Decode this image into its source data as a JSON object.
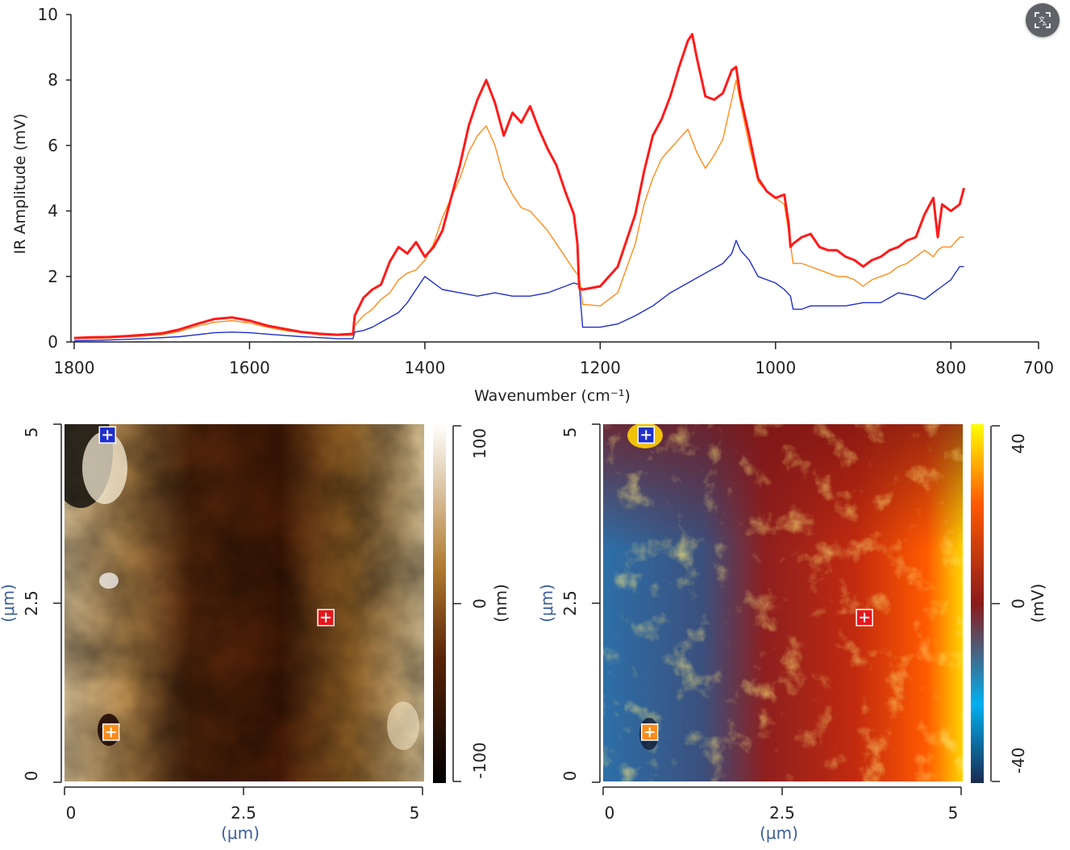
{
  "chart_data": [
    {
      "type": "line",
      "xlabel": "Wavenumber (cm⁻¹)",
      "ylabel": "IR Amplitude (mV)",
      "xlim": [
        1800,
        700
      ],
      "ylim": [
        0,
        10
      ],
      "xticks": [
        "1800",
        "1600",
        "1400",
        "1200",
        "1000",
        "800",
        "700"
      ],
      "yticks": [
        "0",
        "2",
        "4",
        "6",
        "8",
        "10"
      ],
      "series": [
        {
          "name": "red",
          "color": "#ff1a1a",
          "x": [
            1800,
            1780,
            1760,
            1740,
            1720,
            1700,
            1680,
            1660,
            1640,
            1620,
            1600,
            1580,
            1560,
            1540,
            1520,
            1500,
            1482,
            1480,
            1470,
            1460,
            1450,
            1440,
            1430,
            1420,
            1410,
            1400,
            1390,
            1380,
            1370,
            1360,
            1350,
            1340,
            1330,
            1320,
            1310,
            1300,
            1290,
            1280,
            1270,
            1260,
            1250,
            1240,
            1230,
            1226,
            1224,
            1220,
            1200,
            1180,
            1160,
            1150,
            1140,
            1130,
            1120,
            1110,
            1100,
            1095,
            1090,
            1080,
            1070,
            1060,
            1050,
            1045,
            1040,
            1030,
            1020,
            1010,
            1000,
            990,
            985,
            983,
            980,
            970,
            960,
            950,
            940,
            930,
            920,
            910,
            900,
            890,
            880,
            870,
            860,
            850,
            840,
            830,
            820,
            815,
            810,
            800,
            790,
            785
          ],
          "y": [
            0.12,
            0.14,
            0.15,
            0.18,
            0.22,
            0.26,
            0.38,
            0.55,
            0.7,
            0.75,
            0.65,
            0.5,
            0.4,
            0.3,
            0.25,
            0.22,
            0.25,
            0.8,
            1.35,
            1.6,
            1.75,
            2.45,
            2.9,
            2.7,
            3.05,
            2.6,
            2.9,
            3.4,
            4.4,
            5.4,
            6.6,
            7.4,
            8.0,
            7.3,
            6.3,
            7.0,
            6.7,
            7.2,
            6.5,
            5.9,
            5.4,
            4.6,
            3.9,
            3.0,
            1.65,
            1.6,
            1.7,
            2.3,
            3.9,
            5.2,
            6.3,
            6.8,
            7.5,
            8.4,
            9.2,
            9.4,
            8.7,
            7.5,
            7.4,
            7.6,
            8.3,
            8.4,
            7.5,
            6.3,
            5.0,
            4.6,
            4.4,
            4.5,
            3.6,
            2.9,
            3.0,
            3.2,
            3.3,
            2.9,
            2.8,
            2.8,
            2.6,
            2.5,
            2.3,
            2.5,
            2.6,
            2.8,
            2.9,
            3.1,
            3.2,
            3.9,
            4.4,
            3.2,
            4.2,
            4.0,
            4.2,
            4.7
          ]
        },
        {
          "name": "orange",
          "color": "#ff8c1a",
          "x": [
            1800,
            1760,
            1720,
            1700,
            1680,
            1660,
            1640,
            1620,
            1600,
            1580,
            1560,
            1540,
            1520,
            1500,
            1482,
            1480,
            1470,
            1460,
            1450,
            1440,
            1430,
            1420,
            1410,
            1400,
            1390,
            1380,
            1370,
            1360,
            1350,
            1340,
            1330,
            1320,
            1310,
            1300,
            1290,
            1280,
            1270,
            1260,
            1250,
            1240,
            1230,
            1224,
            1220,
            1200,
            1180,
            1160,
            1150,
            1140,
            1130,
            1120,
            1110,
            1100,
            1090,
            1080,
            1070,
            1060,
            1050,
            1045,
            1040,
            1030,
            1020,
            1010,
            1000,
            990,
            983,
            980,
            970,
            960,
            950,
            940,
            930,
            920,
            910,
            900,
            890,
            880,
            870,
            860,
            850,
            840,
            830,
            820,
            815,
            810,
            800,
            790,
            785
          ],
          "y": [
            0.1,
            0.12,
            0.18,
            0.22,
            0.32,
            0.48,
            0.6,
            0.65,
            0.58,
            0.45,
            0.35,
            0.28,
            0.22,
            0.2,
            0.2,
            0.5,
            0.8,
            1.0,
            1.3,
            1.5,
            1.9,
            2.1,
            2.2,
            2.5,
            3.0,
            3.8,
            4.4,
            5.0,
            5.8,
            6.3,
            6.6,
            6.0,
            5.0,
            4.5,
            4.1,
            4.0,
            3.7,
            3.4,
            3.0,
            2.6,
            2.2,
            2.0,
            1.15,
            1.1,
            1.5,
            3.0,
            4.2,
            5.0,
            5.6,
            5.9,
            6.2,
            6.5,
            5.8,
            5.3,
            5.7,
            6.2,
            7.4,
            8.0,
            7.3,
            6.0,
            4.9,
            4.6,
            4.4,
            4.2,
            3.0,
            2.4,
            2.4,
            2.3,
            2.2,
            2.1,
            2.0,
            2.0,
            1.9,
            1.7,
            1.9,
            2.0,
            2.1,
            2.3,
            2.4,
            2.6,
            2.8,
            2.6,
            2.8,
            2.9,
            2.9,
            3.2,
            3.2
          ]
        },
        {
          "name": "blue",
          "color": "#1f2fcc",
          "x": [
            1800,
            1760,
            1720,
            1680,
            1660,
            1640,
            1620,
            1600,
            1580,
            1560,
            1540,
            1520,
            1500,
            1482,
            1480,
            1470,
            1460,
            1450,
            1440,
            1430,
            1420,
            1410,
            1400,
            1390,
            1380,
            1360,
            1340,
            1320,
            1300,
            1280,
            1260,
            1240,
            1230,
            1224,
            1220,
            1200,
            1180,
            1160,
            1140,
            1120,
            1100,
            1080,
            1060,
            1050,
            1045,
            1040,
            1030,
            1020,
            1000,
            990,
            983,
            980,
            970,
            960,
            940,
            920,
            900,
            880,
            860,
            840,
            830,
            820,
            810,
            800,
            790,
            785
          ],
          "y": [
            0.04,
            0.06,
            0.1,
            0.16,
            0.22,
            0.28,
            0.3,
            0.28,
            0.24,
            0.2,
            0.16,
            0.13,
            0.1,
            0.1,
            0.3,
            0.35,
            0.45,
            0.6,
            0.75,
            0.9,
            1.2,
            1.6,
            2.0,
            1.8,
            1.6,
            1.5,
            1.4,
            1.5,
            1.4,
            1.4,
            1.5,
            1.7,
            1.8,
            1.75,
            0.45,
            0.45,
            0.55,
            0.8,
            1.1,
            1.5,
            1.8,
            2.1,
            2.4,
            2.7,
            3.1,
            2.8,
            2.5,
            2.0,
            1.8,
            1.6,
            1.4,
            1.0,
            1.0,
            1.1,
            1.1,
            1.1,
            1.2,
            1.2,
            1.5,
            1.4,
            1.3,
            1.5,
            1.7,
            1.9,
            2.3,
            2.3
          ]
        }
      ]
    },
    {
      "type": "heatmap",
      "name": "topography",
      "colormap": "gold",
      "xlabel": "(μm)",
      "ylabel": "(μm)",
      "xticks": [
        "0",
        "2.5",
        "5"
      ],
      "yticks": [
        "0",
        "2.5",
        "5"
      ],
      "xlim": [
        0,
        5
      ],
      "ylim": [
        0,
        5
      ],
      "colorbar_label": "(nm)",
      "colorbar_ticks": [
        "100",
        "0",
        "-100"
      ],
      "colorbar_range": [
        -100,
        100
      ],
      "markers": [
        {
          "color": "#1f2fcc",
          "x": 0.6,
          "y": 4.85
        },
        {
          "color": "#e8161b",
          "x": 3.65,
          "y": 2.3
        },
        {
          "color": "#ff8c1a",
          "x": 0.65,
          "y": 0.7
        }
      ]
    },
    {
      "type": "heatmap",
      "name": "ir-amplitude",
      "colormap": "red-blue",
      "xlabel": "(μm)",
      "ylabel": "(μm)",
      "xticks": [
        "0",
        "2.5",
        "5"
      ],
      "yticks": [
        "0",
        "2.5",
        "5"
      ],
      "xlim": [
        0,
        5
      ],
      "ylim": [
        0,
        5
      ],
      "colorbar_label": "(mV)",
      "colorbar_ticks": [
        "40",
        "0",
        "-40"
      ],
      "colorbar_range": [
        -40,
        40
      ],
      "markers": [
        {
          "color": "#1f2fcc",
          "x": 0.6,
          "y": 4.85
        },
        {
          "color": "#e8161b",
          "x": 3.65,
          "y": 2.3
        },
        {
          "color": "#ff8c1a",
          "x": 0.65,
          "y": 0.7
        }
      ]
    }
  ],
  "translate_icon": "translate-icon"
}
